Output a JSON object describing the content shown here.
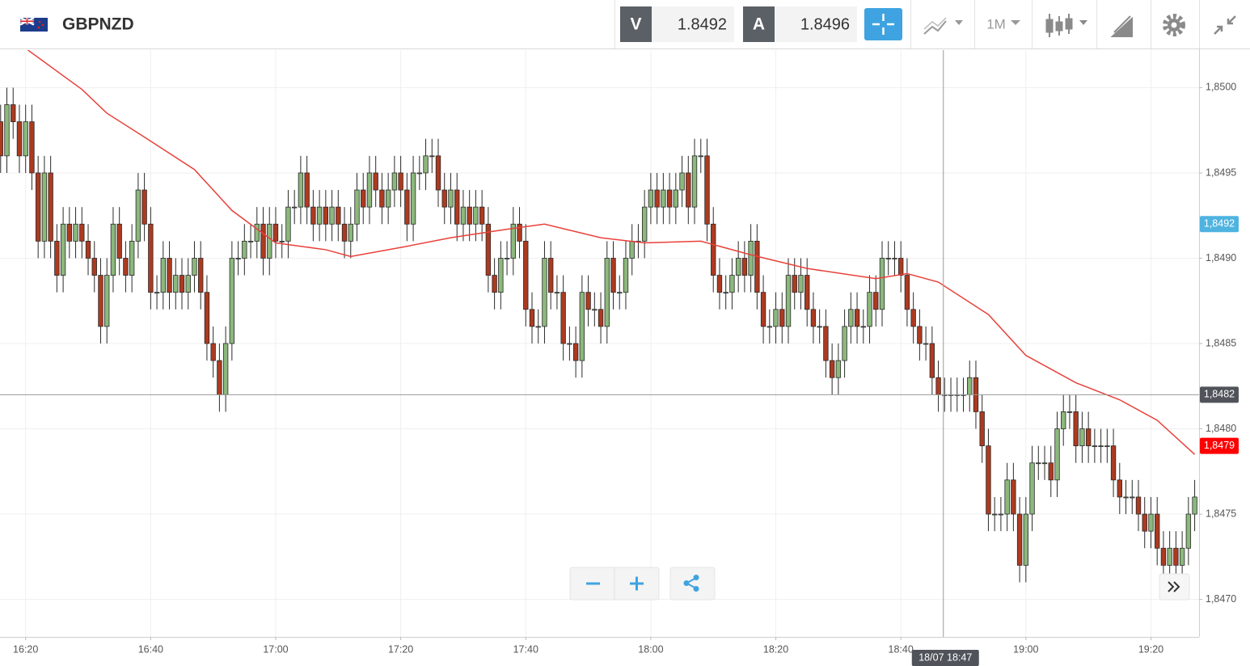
{
  "header": {
    "symbol": "GBPNZD",
    "bid_label": "V",
    "bid": 1.8492,
    "ask_label": "A",
    "ask": 1.8496,
    "timeframe": "1M"
  },
  "chart_data": {
    "type": "candlestick",
    "up_color": "#8cb87c",
    "down_color": "#ad3a1f",
    "edge_color": "#2a2a2a",
    "open": [
      1.8498,
      1.8496,
      1.8499,
      1.8498,
      1.8496,
      1.8498,
      1.8495,
      1.8491,
      1.8495,
      1.8491,
      1.8489,
      1.8492,
      1.8491,
      1.8492,
      1.8491,
      1.849,
      1.8489,
      1.8486,
      1.8489,
      1.8492,
      1.849,
      1.8489,
      1.8491,
      1.8494,
      1.8492,
      1.8488,
      1.8488,
      1.849,
      1.8488,
      1.8489,
      1.8488,
      1.8489,
      1.849,
      1.8488,
      1.8485,
      1.8484,
      1.8482,
      1.8485,
      1.849,
      1.849,
      1.8491,
      1.8491,
      1.8492,
      1.849,
      1.8492,
      1.8491,
      1.8491,
      1.8493,
      1.8493,
      1.8495,
      1.8493,
      1.8492,
      1.8493,
      1.8492,
      1.8493,
      1.8492,
      1.8491,
      1.8492,
      1.8494,
      1.8493,
      1.8495,
      1.8494,
      1.8493,
      1.8494,
      1.8495,
      1.8494,
      1.8492,
      1.8495,
      1.8495,
      1.8496,
      1.8496,
      1.8494,
      1.8493,
      1.8494,
      1.8492,
      1.8493,
      1.8492,
      1.8493,
      1.8492,
      1.8489,
      1.8488,
      1.849,
      1.849,
      1.8492,
      1.8491,
      1.8487,
      1.8486,
      1.8486,
      1.849,
      1.8488,
      1.8488,
      1.8485,
      1.8485,
      1.8484,
      1.8488,
      1.8487,
      1.8487,
      1.8486,
      1.849,
      1.8488,
      1.8488,
      1.849,
      1.8491,
      1.8491,
      1.8493,
      1.8494,
      1.8493,
      1.8494,
      1.8493,
      1.8494,
      1.8495,
      1.8493,
      1.8496,
      1.8496,
      1.8492,
      1.8489,
      1.8488,
      1.8488,
      1.8489,
      1.849,
      1.8489,
      1.8491,
      1.8488,
      1.8486,
      1.8486,
      1.8487,
      1.8486,
      1.8489,
      1.8488,
      1.8489,
      1.8487,
      1.8486,
      1.8486,
      1.8484,
      1.8483,
      1.8484,
      1.8486,
      1.8487,
      1.8486,
      1.8486,
      1.8488,
      1.8487,
      1.849,
      1.849,
      1.849,
      1.8489,
      1.8487,
      1.8486,
      1.8485,
      1.8485,
      1.8483,
      1.8482,
      1.8482,
      1.8482,
      1.8482,
      1.8482,
      1.8483,
      1.8481,
      1.8479,
      1.8475,
      1.8475,
      1.8475,
      1.8477,
      1.8475,
      1.8472,
      1.8475,
      1.8478,
      1.8478,
      1.8478,
      1.8477,
      1.848,
      1.8481,
      1.8481,
      1.8479,
      1.848,
      1.8479,
      1.8479,
      1.8479,
      1.8479,
      1.8477,
      1.8476,
      1.8476,
      1.8476,
      1.8475,
      1.8474,
      1.8475,
      1.8473,
      1.8472,
      1.8473,
      1.8472,
      1.8473,
      1.8475
    ],
    "high": [
      1.8499,
      1.85,
      1.85,
      1.8499,
      1.8499,
      1.8499,
      1.8496,
      1.8496,
      1.8496,
      1.8492,
      1.8493,
      1.8493,
      1.8493,
      1.8493,
      1.8492,
      1.8491,
      1.849,
      1.849,
      1.8493,
      1.8493,
      1.8491,
      1.8492,
      1.8495,
      1.8495,
      1.8493,
      1.8489,
      1.8491,
      1.8491,
      1.849,
      1.849,
      1.849,
      1.8491,
      1.8491,
      1.8489,
      1.8486,
      1.8485,
      1.8486,
      1.8491,
      1.8491,
      1.8492,
      1.8492,
      1.8493,
      1.8493,
      1.8493,
      1.8493,
      1.8492,
      1.8494,
      1.8494,
      1.8496,
      1.8496,
      1.8494,
      1.8494,
      1.8494,
      1.8494,
      1.8494,
      1.8493,
      1.8493,
      1.8495,
      1.8495,
      1.8496,
      1.8496,
      1.8495,
      1.8495,
      1.8496,
      1.8496,
      1.8495,
      1.8496,
      1.8496,
      1.8497,
      1.8497,
      1.8497,
      1.8495,
      1.8495,
      1.8495,
      1.8494,
      1.8494,
      1.8494,
      1.8494,
      1.8493,
      1.849,
      1.8491,
      1.8491,
      1.8493,
      1.8493,
      1.8492,
      1.8488,
      1.8487,
      1.8491,
      1.8491,
      1.8489,
      1.8489,
      1.8486,
      1.8486,
      1.8489,
      1.8489,
      1.8488,
      1.8488,
      1.8491,
      1.8491,
      1.8489,
      1.8491,
      1.8492,
      1.8492,
      1.8494,
      1.8495,
      1.8495,
      1.8495,
      1.8495,
      1.8495,
      1.8496,
      1.8496,
      1.8497,
      1.8497,
      1.8497,
      1.8493,
      1.849,
      1.8489,
      1.849,
      1.8491,
      1.8491,
      1.8492,
      1.8492,
      1.8489,
      1.8487,
      1.8488,
      1.8488,
      1.849,
      1.849,
      1.849,
      1.849,
      1.8488,
      1.8487,
      1.8487,
      1.8485,
      1.8485,
      1.8487,
      1.8488,
      1.8488,
      1.8487,
      1.8489,
      1.8489,
      1.8491,
      1.8491,
      1.8491,
      1.8491,
      1.849,
      1.8488,
      1.8487,
      1.8486,
      1.8486,
      1.8484,
      1.8483,
      1.8483,
      1.8483,
      1.8483,
      1.8484,
      1.8484,
      1.8482,
      1.848,
      1.8476,
      1.8476,
      1.8478,
      1.8478,
      1.8476,
      1.8476,
      1.8479,
      1.8479,
      1.8479,
      1.8479,
      1.8481,
      1.8482,
      1.8482,
      1.8482,
      1.8481,
      1.8481,
      1.848,
      1.848,
      1.848,
      1.848,
      1.8478,
      1.8477,
      1.8477,
      1.8477,
      1.8476,
      1.8476,
      1.8476,
      1.8474,
      1.8474,
      1.8474,
      1.8474,
      1.8476,
      1.8477
    ],
    "low": [
      1.8495,
      1.8495,
      1.8497,
      1.8495,
      1.8495,
      1.8494,
      1.849,
      1.849,
      1.849,
      1.8488,
      1.8488,
      1.849,
      1.849,
      1.849,
      1.8489,
      1.8488,
      1.8485,
      1.8485,
      1.8488,
      1.8489,
      1.8488,
      1.8488,
      1.849,
      1.8491,
      1.8487,
      1.8487,
      1.8487,
      1.8487,
      1.8487,
      1.8487,
      1.8487,
      1.8488,
      1.8487,
      1.8484,
      1.8483,
      1.8481,
      1.8481,
      1.8484,
      1.8489,
      1.8489,
      1.849,
      1.849,
      1.8489,
      1.8489,
      1.849,
      1.849,
      1.849,
      1.8492,
      1.8492,
      1.8492,
      1.8491,
      1.8491,
      1.8491,
      1.8491,
      1.8491,
      1.849,
      1.849,
      1.8491,
      1.8492,
      1.8492,
      1.8493,
      1.8492,
      1.8492,
      1.8493,
      1.8493,
      1.8491,
      1.8491,
      1.8494,
      1.8494,
      1.8495,
      1.8493,
      1.8492,
      1.8492,
      1.8491,
      1.8491,
      1.8491,
      1.8491,
      1.8491,
      1.8488,
      1.8487,
      1.8487,
      1.8489,
      1.8489,
      1.849,
      1.8486,
      1.8485,
      1.8485,
      1.8485,
      1.8487,
      1.8487,
      1.8484,
      1.8484,
      1.8483,
      1.8483,
      1.8486,
      1.8486,
      1.8485,
      1.8485,
      1.8487,
      1.8487,
      1.8487,
      1.8489,
      1.849,
      1.849,
      1.8492,
      1.8492,
      1.8492,
      1.8492,
      1.8492,
      1.8493,
      1.8492,
      1.8492,
      1.8495,
      1.8491,
      1.8488,
      1.8487,
      1.8487,
      1.8487,
      1.8488,
      1.8488,
      1.8488,
      1.8487,
      1.8485,
      1.8485,
      1.8485,
      1.8485,
      1.8485,
      1.8487,
      1.8487,
      1.8486,
      1.8485,
      1.8485,
      1.8483,
      1.8482,
      1.8482,
      1.8483,
      1.8485,
      1.8485,
      1.8485,
      1.8485,
      1.8486,
      1.8486,
      1.8489,
      1.8489,
      1.8488,
      1.8486,
      1.8485,
      1.8484,
      1.8484,
      1.8482,
      1.8481,
      1.8481,
      1.8481,
      1.8481,
      1.8481,
      1.8481,
      1.848,
      1.8478,
      1.8474,
      1.8474,
      1.8474,
      1.8474,
      1.8474,
      1.8471,
      1.8471,
      1.8474,
      1.8477,
      1.8477,
      1.8476,
      1.8476,
      1.8479,
      1.848,
      1.8478,
      1.8478,
      1.8478,
      1.8478,
      1.8478,
      1.8478,
      1.8476,
      1.8475,
      1.8475,
      1.8475,
      1.8474,
      1.8473,
      1.8473,
      1.8472,
      1.8471,
      1.8471,
      1.8471,
      1.8471,
      1.8472,
      1.8474
    ],
    "close": [
      1.8496,
      1.8499,
      1.8498,
      1.8496,
      1.8498,
      1.8495,
      1.8491,
      1.8495,
      1.8491,
      1.8489,
      1.8492,
      1.8491,
      1.8492,
      1.8491,
      1.849,
      1.8489,
      1.8486,
      1.8489,
      1.8492,
      1.849,
      1.8489,
      1.8491,
      1.8494,
      1.8492,
      1.8488,
      1.8488,
      1.849,
      1.8488,
      1.8489,
      1.8488,
      1.8489,
      1.849,
      1.8488,
      1.8485,
      1.8484,
      1.8482,
      1.8485,
      1.849,
      1.849,
      1.8491,
      1.8491,
      1.8492,
      1.849,
      1.8492,
      1.8491,
      1.8491,
      1.8493,
      1.8493,
      1.8495,
      1.8493,
      1.8492,
      1.8493,
      1.8492,
      1.8493,
      1.8492,
      1.8491,
      1.8492,
      1.8494,
      1.8493,
      1.8495,
      1.8494,
      1.8493,
      1.8494,
      1.8495,
      1.8494,
      1.8492,
      1.8495,
      1.8495,
      1.8496,
      1.8496,
      1.8494,
      1.8493,
      1.8494,
      1.8492,
      1.8493,
      1.8492,
      1.8493,
      1.8492,
      1.8489,
      1.8488,
      1.849,
      1.849,
      1.8492,
      1.8491,
      1.8487,
      1.8486,
      1.8486,
      1.849,
      1.8488,
      1.8488,
      1.8485,
      1.8485,
      1.8484,
      1.8488,
      1.8487,
      1.8487,
      1.8486,
      1.849,
      1.8488,
      1.8488,
      1.849,
      1.8491,
      1.8491,
      1.8493,
      1.8494,
      1.8493,
      1.8494,
      1.8493,
      1.8494,
      1.8495,
      1.8493,
      1.8496,
      1.8496,
      1.8492,
      1.8489,
      1.8488,
      1.8488,
      1.8489,
      1.849,
      1.8489,
      1.8491,
      1.8488,
      1.8486,
      1.8486,
      1.8487,
      1.8486,
      1.8489,
      1.8488,
      1.8489,
      1.8487,
      1.8486,
      1.8486,
      1.8484,
      1.8483,
      1.8484,
      1.8486,
      1.8487,
      1.8486,
      1.8486,
      1.8488,
      1.8487,
      1.849,
      1.849,
      1.849,
      1.8489,
      1.8487,
      1.8486,
      1.8485,
      1.8485,
      1.8483,
      1.8482,
      1.8482,
      1.8482,
      1.8482,
      1.8482,
      1.8483,
      1.8481,
      1.8479,
      1.8475,
      1.8475,
      1.8475,
      1.8477,
      1.8475,
      1.8472,
      1.8475,
      1.8478,
      1.8478,
      1.8478,
      1.8477,
      1.848,
      1.8481,
      1.8481,
      1.8479,
      1.848,
      1.8479,
      1.8479,
      1.8479,
      1.8479,
      1.8477,
      1.8476,
      1.8476,
      1.8476,
      1.8475,
      1.8474,
      1.8475,
      1.8473,
      1.8472,
      1.8473,
      1.8472,
      1.8473,
      1.8475,
      1.8476
    ],
    "moving_average": {
      "color": "#e8413a",
      "x": [
        4,
        13,
        17,
        23,
        31,
        37,
        44,
        52,
        56,
        65,
        72,
        81,
        87,
        96,
        103,
        112,
        120,
        129,
        140,
        145,
        150,
        158,
        164,
        172,
        179,
        185,
        191
      ],
      "values": [
        1.85023,
        1.84999,
        1.84985,
        1.84971,
        1.84952,
        1.84928,
        1.84909,
        1.84905,
        1.84901,
        1.84907,
        1.84912,
        1.84917,
        1.8492,
        1.84912,
        1.84909,
        1.8491,
        1.84902,
        1.84894,
        1.84888,
        1.84891,
        1.84886,
        1.84867,
        1.84843,
        1.84827,
        1.84817,
        1.84805,
        1.84785
      ]
    },
    "xlim": [
      -0.1,
      191.7
    ],
    "xticks": [
      {
        "value": 4,
        "label": "16:20"
      },
      {
        "value": 24,
        "label": "16:40"
      },
      {
        "value": 44,
        "label": "17:00"
      },
      {
        "value": 64,
        "label": "17:20"
      },
      {
        "value": 84,
        "label": "17:40"
      },
      {
        "value": 104,
        "label": "18:00"
      },
      {
        "value": 124,
        "label": "18:20"
      },
      {
        "value": 144,
        "label": "18:40"
      },
      {
        "value": 164,
        "label": "19:00"
      },
      {
        "value": 184,
        "label": "19:20"
      }
    ],
    "ylim": [
      1.84678,
      1.85022
    ],
    "yticks": [
      {
        "value": 1.847,
        "label": "1,8470"
      },
      {
        "value": 1.8475,
        "label": "1,8475"
      },
      {
        "value": 1.848,
        "label": "1,8480"
      },
      {
        "value": 1.8485,
        "label": "1,8485"
      },
      {
        "value": 1.849,
        "label": "1,8490"
      },
      {
        "value": 1.8495,
        "label": "1,8495"
      },
      {
        "value": 1.85,
        "label": "1,8500"
      }
    ],
    "grid": true,
    "price_tags": [
      {
        "value": 1.8492,
        "label": "1,8492",
        "color": "#4fb3e0"
      },
      {
        "value": 1.8479,
        "label": "1,8479",
        "color": "#ff0000"
      }
    ],
    "crosshair": {
      "x": 150.8,
      "x_label": "18/07 18:47",
      "y": 1.8482,
      "y_label": "1,8482",
      "color": "#50545a"
    }
  }
}
